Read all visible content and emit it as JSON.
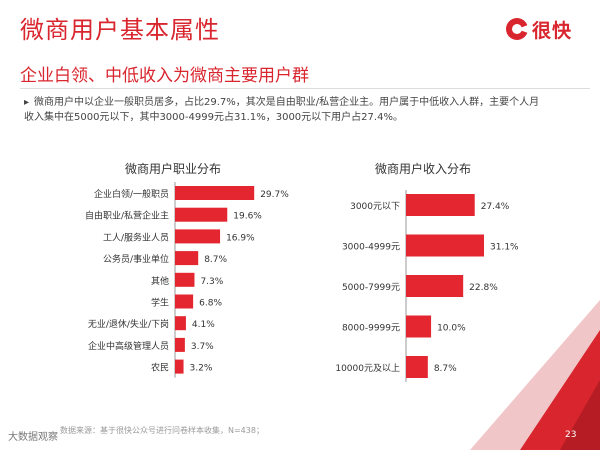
{
  "header": {
    "title": "微商用户基本属性",
    "subtitle": "企业白领、中低收入为微商主要用户群",
    "brand": "很快",
    "brand_color": "#d9262e"
  },
  "description": {
    "bullet_icon": "triangle-right-icon",
    "line1": "微商用户中以企业一般职员居多，占比29.7%，其次是自由职业/私营企业主。用户属于中低收入人群，主要个人月",
    "line2": "收入集中在5000元以下，其中3000-4999元占31.1%，3000元以下用户占27.4%。"
  },
  "chart_data": [
    {
      "type": "bar",
      "orientation": "horizontal",
      "title": "微商用户职业分布",
      "categories": [
        "企业白领/一般职员",
        "自由职业/私营企业主",
        "工人/服务业人员",
        "公务员/事业单位",
        "其他",
        "学生",
        "无业/退休/失业/下岗",
        "企业中高级管理人员",
        "农民"
      ],
      "values": [
        29.7,
        19.6,
        16.9,
        8.7,
        7.3,
        6.8,
        4.1,
        3.7,
        3.2
      ],
      "value_labels": [
        "29.7%",
        "19.6%",
        "16.9%",
        "8.7%",
        "7.3%",
        "6.8%",
        "4.1%",
        "3.7%",
        "3.2%"
      ],
      "color": "#e3262f",
      "xlim": [
        0,
        30
      ]
    },
    {
      "type": "bar",
      "orientation": "horizontal",
      "title": "微商用户收入分布",
      "categories": [
        "3000元以下",
        "3000-4999元",
        "5000-7999元",
        "8000-9999元",
        "10000元及以上"
      ],
      "values": [
        27.4,
        31.1,
        22.8,
        10.0,
        8.7
      ],
      "value_labels": [
        "27.4%",
        "31.1%",
        "22.8%",
        "10.0%",
        "8.7%"
      ],
      "color": "#e3262f",
      "xlim": [
        0,
        31.1
      ]
    }
  ],
  "footer": {
    "source": "数据来源：基于很快公众号进行问卷样本收集，N=438；",
    "page_number": "23",
    "watermark": "大数据观察"
  }
}
